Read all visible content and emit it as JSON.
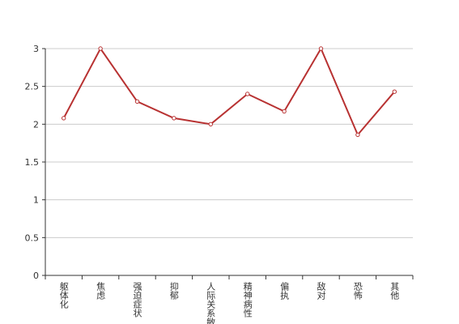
{
  "chart_data": {
    "type": "line",
    "categories": [
      "躯体化",
      "焦虑",
      "强迫症状",
      "抑郁",
      "人际关系敏感",
      "精神病性",
      "偏执",
      "敌对",
      "恐怖",
      "其他"
    ],
    "series": [
      {
        "color": "#b83232",
        "values": [
          2.08,
          3,
          2.3,
          2.08,
          2.0,
          2.4,
          2.17,
          3,
          1.86,
          2.43
        ]
      }
    ],
    "ylim": [
      0,
      3
    ],
    "yticks": [
      0,
      0.5,
      1,
      1.5,
      2,
      2.5,
      3
    ],
    "grid": true
  }
}
